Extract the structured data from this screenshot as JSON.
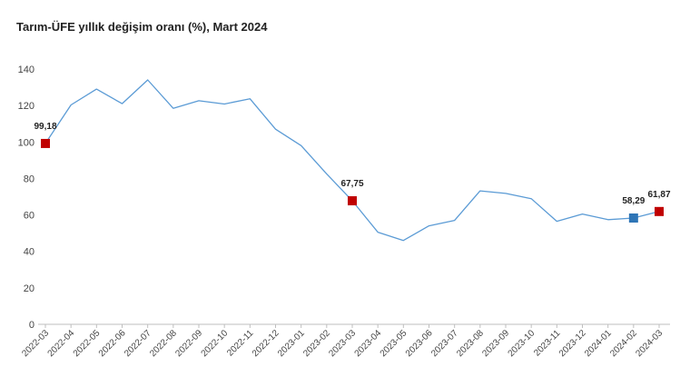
{
  "chart_data": {
    "type": "line",
    "title": "Tarım-ÜFE yıllık değişim oranı (%), Mart 2024",
    "xlabel": "",
    "ylabel": "",
    "ylim": [
      0,
      140
    ],
    "yticks": [
      0,
      20,
      40,
      60,
      80,
      100,
      120,
      140
    ],
    "grid": false,
    "categories": [
      "2022-03",
      "2022-04",
      "2022-05",
      "2022-06",
      "2022-07",
      "2022-08",
      "2022-09",
      "2022-10",
      "2022-11",
      "2022-12",
      "2023-01",
      "2023-02",
      "2023-03",
      "2023-04",
      "2023-05",
      "2023-06",
      "2023-07",
      "2023-08",
      "2023-09",
      "2023-10",
      "2023-11",
      "2023-12",
      "2024-01",
      "2024-02",
      "2024-03"
    ],
    "series": [
      {
        "name": "Tarım-ÜFE yıllık değişim oranı (%)",
        "color": "#5b9bd5",
        "values": [
          99.18,
          120.3,
          129.0,
          121.0,
          134.0,
          118.5,
          122.6,
          120.8,
          123.7,
          107.0,
          98.0,
          82.5,
          67.75,
          50.5,
          46.0,
          54.0,
          57.0,
          73.2,
          71.8,
          68.9,
          56.5,
          60.5,
          57.4,
          58.29,
          61.87
        ]
      }
    ],
    "markers": [
      {
        "index": 0,
        "label": "99,18",
        "color": "#c00000"
      },
      {
        "index": 12,
        "label": "67,75",
        "color": "#c00000"
      },
      {
        "index": 23,
        "label": "58,29",
        "color": "#2e75b6"
      },
      {
        "index": 24,
        "label": "61,87",
        "color": "#c00000"
      }
    ]
  }
}
